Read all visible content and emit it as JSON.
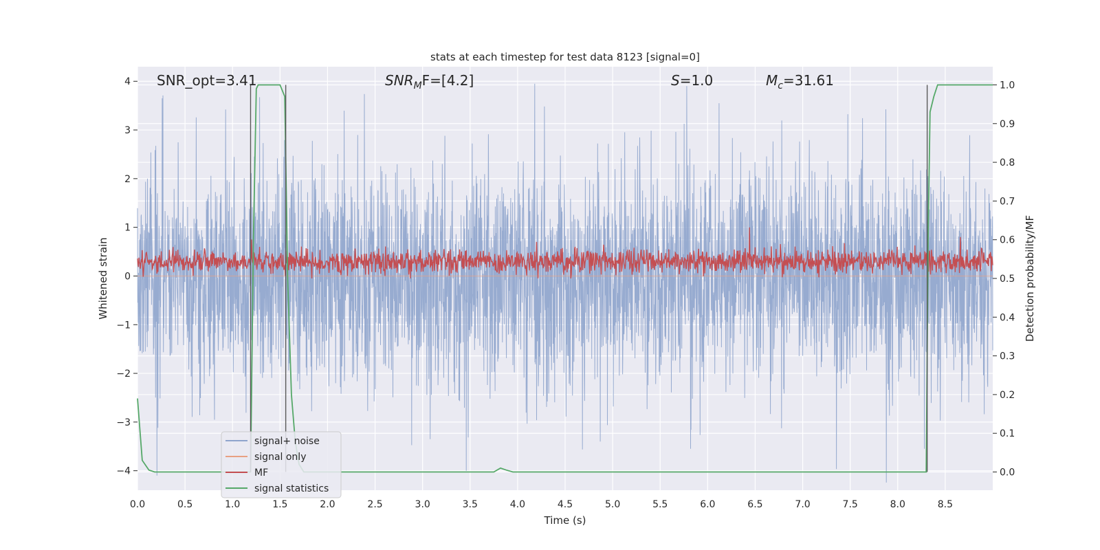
{
  "chart_data": {
    "type": "line",
    "title": "stats at each timestep for test data 8123 [signal=0]",
    "xlabel": "Time (s)",
    "ylabel": "Whitened strain",
    "y2label": "Detection probability/MF",
    "xlim": [
      0.0,
      9.0
    ],
    "ylim": [
      -4.4,
      4.3
    ],
    "y2lim": [
      -0.047,
      1.047
    ],
    "xticks": [
      "0.0",
      "0.5",
      "1.0",
      "1.5",
      "2.0",
      "2.5",
      "3.0",
      "3.5",
      "4.0",
      "4.5",
      "5.0",
      "5.5",
      "6.0",
      "6.5",
      "7.0",
      "7.5",
      "8.0",
      "8.5"
    ],
    "yticks": [
      "4",
      "3",
      "2",
      "1",
      "0",
      "−1",
      "−2",
      "−3",
      "−4"
    ],
    "y2ticks": [
      "1.0",
      "0.9",
      "0.8",
      "0.7",
      "0.6",
      "0.5",
      "0.4",
      "0.3",
      "0.2",
      "0.1",
      "0.0"
    ],
    "annotations": {
      "snr_opt": "SNR_opt=3.41",
      "snr_mf_base": "SNR",
      "snr_mf_sub": "M",
      "snr_mf_rest": "F=[4.2]",
      "s_label": "S",
      "s_rest": "=1.0",
      "mc_base": "M",
      "mc_sub": "c",
      "mc_rest": "=31.61"
    },
    "legend": {
      "placement": "lower-left",
      "entries": [
        "signal+ noise",
        "signal only",
        "MF",
        "signal statistics"
      ]
    },
    "vlines": [
      1.19,
      1.56,
      8.31
    ],
    "series": [
      {
        "name": "signal+ noise",
        "color": "#8ea4cc",
        "axis": "left",
        "description": "whitened noise, approx. normal with spikes to about +/-4",
        "sample_rate": 400,
        "amplitude_std": 1.1,
        "peaks": [
          [
            0.26,
            3.65
          ],
          [
            3.46,
            -4.0
          ],
          [
            4.18,
            3.95
          ],
          [
            5.78,
            3.9
          ],
          [
            4.87,
            -3.4
          ],
          [
            5.82,
            -3.55
          ],
          [
            6.12,
            3.55
          ],
          [
            3.08,
            -3.35
          ],
          [
            8.28,
            -3.55
          ]
        ]
      },
      {
        "name": "signal only",
        "color": "#e8a082",
        "axis": "left",
        "x": [
          0.0,
          9.0
        ],
        "values": [
          0.0,
          0.0
        ]
      },
      {
        "name": "MF",
        "color": "#c44e52",
        "axis": "left",
        "description": "matched-filter output fluctuating around 0.3",
        "sample_rate": 200,
        "mean": 0.3,
        "amplitude_std": 0.12,
        "peaks": [
          [
            1.2,
            0.75
          ],
          [
            4.2,
            0.7
          ],
          [
            6.44,
            1.0
          ],
          [
            8.66,
            0.8
          ]
        ]
      },
      {
        "name": "signal statistics",
        "color": "#55a868",
        "axis": "right",
        "x": [
          0.0,
          0.05,
          0.12,
          0.18,
          0.3,
          1.0,
          1.15,
          1.19,
          1.22,
          1.25,
          1.27,
          1.3,
          1.5,
          1.55,
          1.58,
          1.62,
          1.66,
          1.7,
          1.75,
          1.8,
          2.5,
          3.5,
          3.75,
          3.82,
          3.88,
          3.95,
          4.5,
          7.5,
          8.28,
          8.3,
          8.32,
          8.34,
          8.38,
          8.42,
          8.45,
          8.5,
          9.0
        ],
        "values": [
          0.19,
          0.03,
          0.005,
          0.0,
          0.0,
          0.0,
          0.0,
          0.0,
          0.6,
          0.99,
          1.0,
          1.0,
          1.0,
          0.97,
          0.5,
          0.2,
          0.08,
          0.02,
          0.0,
          0.0,
          0.0,
          0.0,
          0.0,
          0.01,
          0.005,
          0.0,
          0.0,
          0.0,
          0.0,
          0.0,
          0.6,
          0.93,
          0.97,
          1.0,
          1.0,
          1.0,
          1.0
        ]
      }
    ]
  }
}
